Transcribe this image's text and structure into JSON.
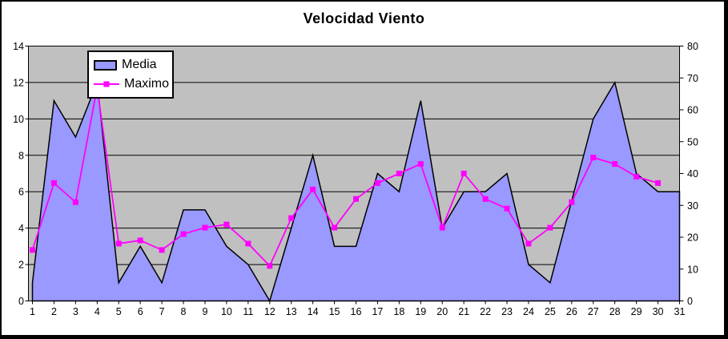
{
  "window": {
    "background": "#FFFFFF",
    "frame_border_color": "#000000"
  },
  "chart_data": {
    "type": "area",
    "title": "Velocidad Viento",
    "categories": [
      1,
      2,
      3,
      4,
      5,
      6,
      7,
      8,
      9,
      10,
      11,
      12,
      13,
      14,
      15,
      16,
      17,
      18,
      19,
      20,
      21,
      22,
      23,
      24,
      25,
      26,
      27,
      28,
      29,
      30,
      31
    ],
    "series": [
      {
        "name": "Media",
        "chart_type": "area",
        "axis": "left",
        "fill": "#9999FF",
        "outline": "#000000",
        "values": [
          1,
          11,
          9,
          12,
          1,
          3,
          1,
          5,
          5,
          3,
          2,
          0,
          4,
          8,
          3,
          3,
          7,
          6,
          11,
          4,
          6,
          6,
          7,
          2,
          1,
          5.5,
          10,
          12,
          7,
          6,
          6
        ]
      },
      {
        "name": "Maximo",
        "chart_type": "line",
        "axis": "right",
        "color": "#FF00FF",
        "marker": "square",
        "values": [
          16,
          37,
          31,
          67,
          18,
          19,
          16,
          21,
          23,
          24,
          18,
          11,
          26,
          35,
          23,
          32,
          37,
          40,
          43,
          23,
          40,
          32,
          29,
          18,
          23,
          31,
          45,
          43,
          39,
          37,
          null
        ]
      }
    ],
    "left_axis": {
      "min": 0,
      "max": 14,
      "step": 2,
      "ticks": [
        0,
        2,
        4,
        6,
        8,
        10,
        12,
        14
      ]
    },
    "right_axis": {
      "min": 0,
      "max": 80,
      "step": 10,
      "ticks": [
        0,
        10,
        20,
        30,
        40,
        50,
        60,
        70,
        80
      ]
    },
    "plot": {
      "background": "#C0C0C0",
      "gridline_color": "#000000",
      "grid": "horizontal"
    },
    "legend": {
      "position": "top-left",
      "entries": [
        "Media",
        "Maximo"
      ]
    }
  }
}
